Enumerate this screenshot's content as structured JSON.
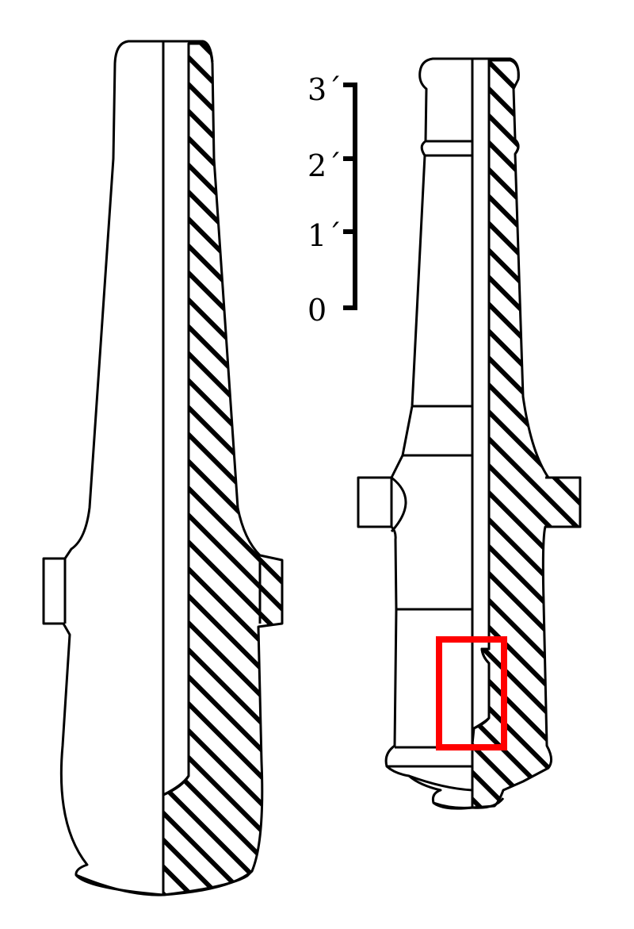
{
  "scale": {
    "labels": [
      "3´",
      "2´",
      "1´",
      "0"
    ]
  },
  "colors": {
    "outline": "#000000",
    "hatch": "#000000",
    "highlight": "#ff0000",
    "background": "#ffffff"
  },
  "figures": {
    "left": "cannon-cross-section-large",
    "right": "cannon-cross-section-small"
  }
}
